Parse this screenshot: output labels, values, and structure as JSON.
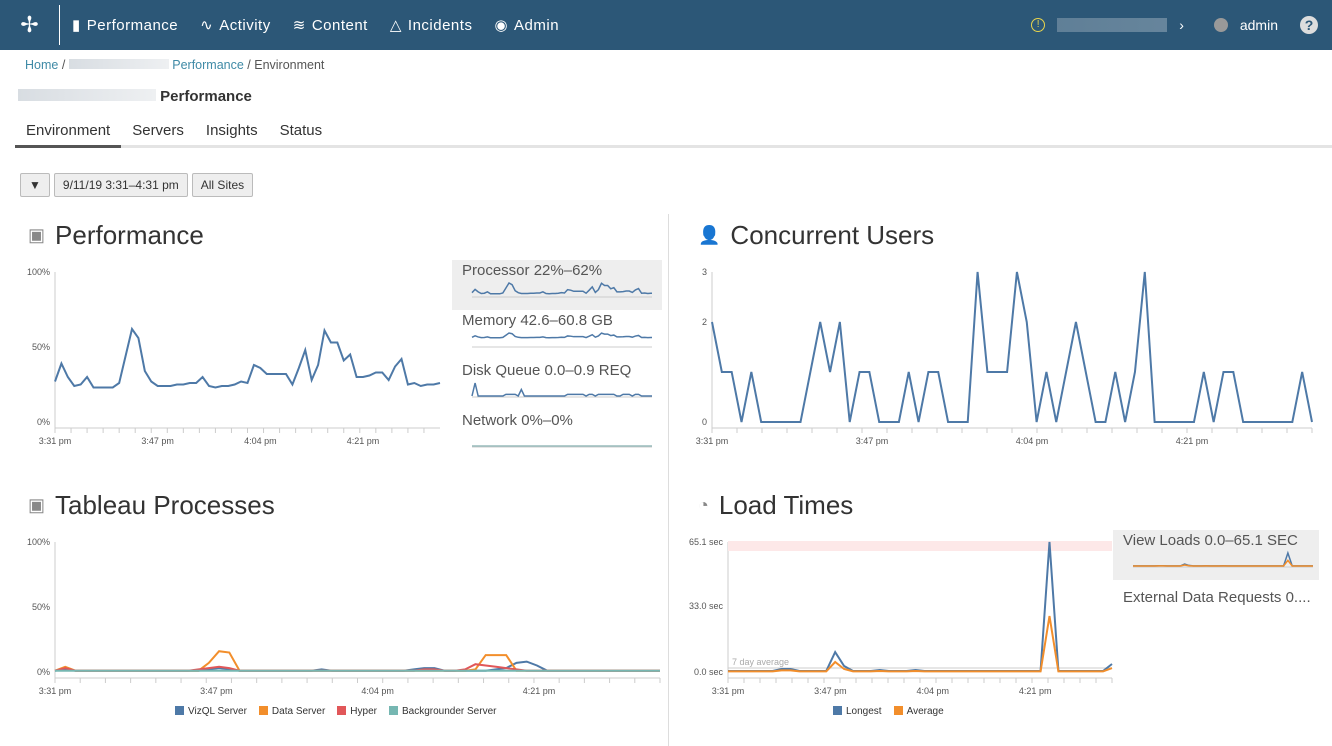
{
  "nav": {
    "items": [
      "Performance",
      "Activity",
      "Content",
      "Incidents",
      "Admin"
    ],
    "user": "admin",
    "help": "?"
  },
  "breadcrumb": {
    "home": "Home",
    "section": "Performance",
    "current": "Environment"
  },
  "page_title": "Performance",
  "tabs": [
    "Environment",
    "Servers",
    "Insights",
    "Status"
  ],
  "filters": {
    "date": "9/11/19 3:31–4:31 pm",
    "site": "All Sites"
  },
  "colors": {
    "header": "#2c5777",
    "blue": "#4e79a7",
    "orange": "#f28e2b",
    "red": "#e15759",
    "teal": "#76b7b2"
  },
  "chart_data": [
    {
      "id": "performance",
      "type": "line",
      "title": "Performance",
      "ylim": [
        0,
        100
      ],
      "yticks": [
        "100%",
        "50%",
        "0%"
      ],
      "xticks": [
        "3:31 pm",
        "3:47 pm",
        "4:04 pm",
        "4:21 pm"
      ],
      "series": [
        {
          "values": [
            27,
            39,
            30,
            24,
            25,
            30,
            23,
            23,
            23,
            23,
            26,
            44,
            62,
            56,
            34,
            27,
            24,
            24,
            24,
            25,
            25,
            26,
            26,
            30,
            24,
            23,
            24,
            24,
            25,
            27,
            26,
            38,
            36,
            32,
            32,
            32,
            32,
            25,
            36,
            48,
            28,
            38,
            61,
            53,
            53,
            41,
            45,
            30,
            30,
            31,
            33,
            33,
            28,
            37,
            42,
            25,
            26,
            24,
            25,
            25,
            26
          ]
        }
      ],
      "side": [
        {
          "label": "Processor",
          "range": "22%–62%"
        },
        {
          "label": "Memory",
          "range": "42.6–60.8 GB"
        },
        {
          "label": "Disk Queue",
          "range": "0.0–0.9 REQ"
        },
        {
          "label": "Network",
          "range": "0%–0%"
        }
      ]
    },
    {
      "id": "users",
      "type": "line",
      "title": "Concurrent Users",
      "ylim": [
        0,
        3
      ],
      "yticks": [
        "3",
        "2",
        "0"
      ],
      "xticks": [
        "3:31 pm",
        "3:47 pm",
        "4:04 pm",
        "4:21 pm"
      ],
      "series": [
        {
          "values": [
            2,
            1,
            1,
            0,
            1,
            0,
            0,
            0,
            0,
            0,
            1,
            2,
            1,
            2,
            0,
            1,
            1,
            0,
            0,
            0,
            1,
            0,
            1,
            1,
            0,
            0,
            0,
            3,
            1,
            1,
            1,
            3,
            2,
            0,
            1,
            0,
            1,
            2,
            1,
            0,
            0,
            1,
            0,
            1,
            3,
            0,
            0,
            0,
            0,
            0,
            1,
            0,
            1,
            1,
            0,
            0,
            0,
            0,
            0,
            0,
            1,
            0
          ]
        }
      ]
    },
    {
      "id": "processes",
      "type": "line",
      "title": "Tableau Processes",
      "ylim": [
        0,
        100
      ],
      "yticks": [
        "100%",
        "50%",
        "0%"
      ],
      "xticks": [
        "3:31 pm",
        "3:47 pm",
        "4:04 pm",
        "4:21 pm"
      ],
      "series": [
        {
          "name": "VizQL Server",
          "values": [
            1,
            2,
            1,
            1,
            1,
            1,
            1,
            1,
            1,
            1,
            1,
            1,
            1,
            1,
            1,
            2,
            3,
            2,
            1,
            1,
            1,
            1,
            1,
            1,
            1,
            1,
            2,
            1,
            1,
            1,
            1,
            1,
            1,
            1,
            1,
            2,
            3,
            3,
            1,
            1,
            1,
            1,
            1,
            2,
            3,
            7,
            8,
            5,
            1,
            1,
            1,
            1,
            1,
            1,
            1,
            1,
            1,
            1,
            1,
            1
          ]
        },
        {
          "name": "Data Server",
          "values": [
            1,
            4,
            1,
            1,
            1,
            1,
            1,
            1,
            1,
            1,
            1,
            1,
            1,
            1,
            1,
            7,
            16,
            15,
            1,
            1,
            1,
            1,
            1,
            1,
            1,
            1,
            1,
            1,
            1,
            1,
            1,
            1,
            1,
            1,
            1,
            1,
            1,
            1,
            1,
            1,
            1,
            2,
            13,
            13,
            13,
            1,
            1,
            1,
            1,
            1,
            1,
            1,
            1,
            1,
            1,
            1,
            1,
            1,
            1,
            1
          ]
        },
        {
          "name": "Hyper",
          "values": [
            1,
            3,
            1,
            1,
            1,
            1,
            1,
            1,
            1,
            1,
            1,
            1,
            1,
            1,
            2,
            3,
            4,
            3,
            1,
            1,
            1,
            1,
            1,
            1,
            1,
            1,
            1,
            1,
            1,
            1,
            1,
            1,
            1,
            1,
            1,
            1,
            2,
            2,
            1,
            1,
            2,
            6,
            5,
            4,
            3,
            2,
            1,
            1,
            1,
            1,
            1,
            1,
            1,
            1,
            1,
            1,
            1,
            1,
            1,
            1
          ]
        },
        {
          "name": "Backgrounder Server",
          "values": [
            1,
            1,
            1,
            1,
            1,
            1,
            1,
            1,
            1,
            1,
            1,
            1,
            1,
            1,
            1,
            1,
            1,
            1,
            1,
            1,
            1,
            1,
            1,
            1,
            1,
            1,
            1,
            1,
            1,
            1,
            1,
            1,
            1,
            1,
            1,
            1,
            1,
            1,
            1,
            1,
            1,
            1,
            1,
            1,
            1,
            1,
            1,
            1,
            1,
            1,
            1,
            1,
            1,
            1,
            1,
            1,
            1,
            1,
            1,
            1
          ]
        }
      ]
    },
    {
      "id": "loads",
      "type": "line",
      "title": "Load Times",
      "ylim": [
        0,
        65.1
      ],
      "yticks": [
        "65.1 sec",
        "33.0 sec",
        "0.0 sec"
      ],
      "xticks": [
        "3:31 pm",
        "3:47 pm",
        "4:04 pm",
        "4:21 pm"
      ],
      "reference": "7 day average",
      "series": [
        {
          "name": "Longest",
          "values": [
            0.5,
            0.5,
            0.5,
            0.5,
            0.5,
            0.5,
            1.5,
            1.5,
            0.5,
            0.5,
            0.5,
            0.5,
            10,
            3,
            0.5,
            0.5,
            0.5,
            1,
            0.5,
            0.5,
            0.5,
            1,
            0.5,
            0.5,
            0.5,
            0.5,
            0.5,
            0.5,
            0.5,
            0.5,
            0.5,
            0.5,
            0.5,
            0.5,
            0.5,
            0.5,
            65.1,
            0.5,
            0.5,
            0.5,
            0.5,
            0.5,
            0.5,
            4
          ]
        },
        {
          "name": "Average",
          "values": [
            0.3,
            0.3,
            0.3,
            0.3,
            0.3,
            0.3,
            0.8,
            0.8,
            0.3,
            0.3,
            0.3,
            0.3,
            5,
            1.5,
            0.3,
            0.3,
            0.3,
            0.5,
            0.3,
            0.3,
            0.3,
            0.5,
            0.3,
            0.3,
            0.3,
            0.3,
            0.3,
            0.3,
            0.3,
            0.3,
            0.3,
            0.3,
            0.3,
            0.3,
            0.3,
            0.3,
            28,
            0.3,
            0.3,
            0.3,
            0.3,
            0.3,
            0.3,
            2
          ]
        }
      ],
      "side": [
        {
          "label": "View Loads",
          "range": "0.0–65.1 SEC"
        },
        {
          "label": "External Data Requests",
          "range": "0...."
        }
      ]
    }
  ]
}
